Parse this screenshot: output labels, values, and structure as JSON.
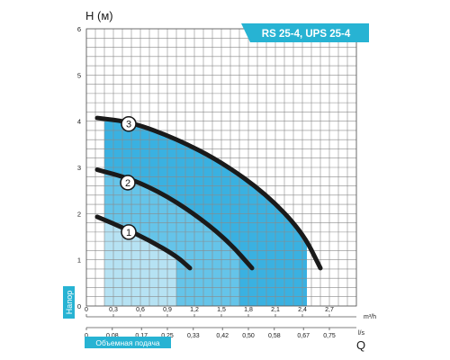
{
  "chart_data": {
    "type": "line",
    "title": "RS 25-4, UPS 25-4",
    "ylabel": "H (м)",
    "ylabel_side": "Напор",
    "xlabel_flow": "Q",
    "xlabel_unit_m3h": "m³/h",
    "xlabel_unit_ls": "l/s",
    "xlabel_bottom": "Объемная подача",
    "xlim": [
      0,
      3.0
    ],
    "ylim": [
      0,
      6
    ],
    "grid": true,
    "y_ticks": [
      "0",
      "1",
      "2",
      "3",
      "4",
      "5",
      "6"
    ],
    "x_ticks_m3h": [
      {
        "x": 0,
        "label": "0"
      },
      {
        "x": 0.3,
        "label": "0,3"
      },
      {
        "x": 0.6,
        "label": "0,6"
      },
      {
        "x": 0.9,
        "label": "0,9"
      },
      {
        "x": 1.2,
        "label": "1,2"
      },
      {
        "x": 1.5,
        "label": "1,5"
      },
      {
        "x": 1.8,
        "label": "1,8"
      },
      {
        "x": 2.1,
        "label": "2,1"
      },
      {
        "x": 2.4,
        "label": "2,4"
      },
      {
        "x": 2.7,
        "label": "2,7"
      }
    ],
    "x_ticks_ls": [
      {
        "x": 0,
        "label": "0"
      },
      {
        "x": 0.288,
        "label": "0,08"
      },
      {
        "x": 0.612,
        "label": "0,17"
      },
      {
        "x": 0.9,
        "label": "0,25"
      },
      {
        "x": 1.188,
        "label": "0,33"
      },
      {
        "x": 1.512,
        "label": "0,42"
      },
      {
        "x": 1.8,
        "label": "0,50"
      },
      {
        "x": 2.088,
        "label": "0,58"
      },
      {
        "x": 2.412,
        "label": "0,67"
      },
      {
        "x": 2.7,
        "label": "0,75"
      }
    ],
    "series": [
      {
        "name": "1",
        "points": [
          [
            0.12,
            1.93
          ],
          [
            0.4,
            1.7
          ],
          [
            0.7,
            1.42
          ],
          [
            1.0,
            1.08
          ],
          [
            1.15,
            0.82
          ]
        ],
        "band": [
          0.2,
          1.0
        ],
        "label_at": [
          0.47,
          1.6
        ]
      },
      {
        "name": "2",
        "points": [
          [
            0.12,
            2.95
          ],
          [
            0.5,
            2.75
          ],
          [
            0.9,
            2.38
          ],
          [
            1.3,
            1.85
          ],
          [
            1.6,
            1.35
          ],
          [
            1.84,
            0.82
          ]
        ],
        "band": [
          0.2,
          1.7
        ],
        "label_at": [
          0.46,
          2.67
        ]
      },
      {
        "name": "3",
        "points": [
          [
            0.12,
            4.07
          ],
          [
            0.5,
            3.98
          ],
          [
            1.0,
            3.62
          ],
          [
            1.5,
            3.12
          ],
          [
            2.0,
            2.42
          ],
          [
            2.4,
            1.6
          ],
          [
            2.6,
            0.82
          ]
        ],
        "band": [
          0.2,
          2.45
        ],
        "label_at": [
          0.47,
          3.94
        ]
      }
    ]
  },
  "colors": {
    "grid": "#8a8a8a",
    "title_bg": "#27b3d3",
    "title_text": "#ffffff",
    "fill_light": "#bfe6f4",
    "fill_mid": "#6ac7ea",
    "fill_dark": "#25a9de",
    "curve": "#1a1a1a",
    "badge_bg": "#27b3d3",
    "badge_text": "#ffffff"
  }
}
